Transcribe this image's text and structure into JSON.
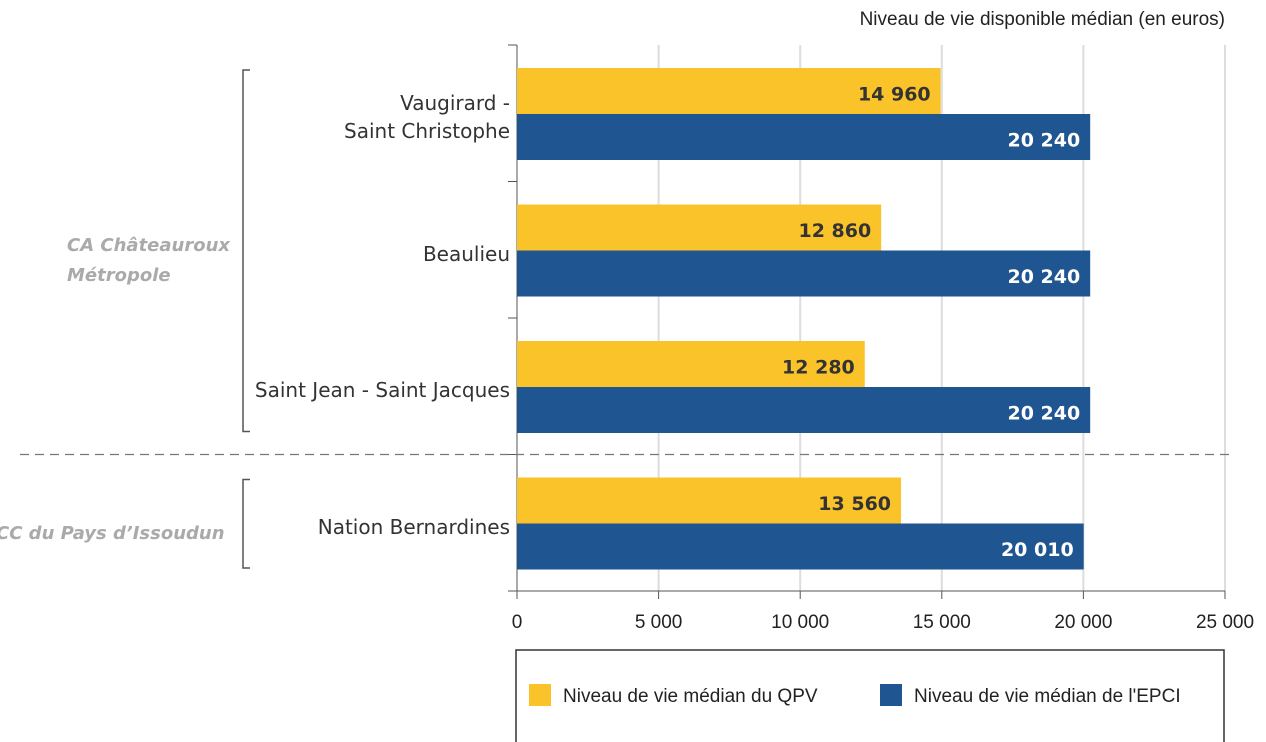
{
  "chart_data": {
    "type": "bar",
    "orientation": "horizontal",
    "x_label": "Niveau de vie disponible médian (en euros)",
    "groups": [
      {
        "name": "CA Châteauroux\nMétropole",
        "categories": [
          "Vaugirard -\nSaint Christophe",
          "Beaulieu",
          "Saint Jean - Saint Jacques"
        ]
      },
      {
        "name": "CC du Pays d’Issoudun",
        "categories": [
          "Nation Bernardines"
        ]
      }
    ],
    "series": [
      {
        "name": "Niveau de vie médian du QPV",
        "color": "#fbc32a",
        "values": [
          14960,
          12860,
          12280,
          13560
        ],
        "value_labels": [
          "14 960",
          "12 860",
          "12 280",
          "13 560"
        ]
      },
      {
        "name": "Niveau de vie médian de l'EPCI",
        "color": "#1f5591",
        "values": [
          20240,
          20240,
          20240,
          20010
        ],
        "value_labels": [
          "20 240",
          "20 240",
          "20 240",
          "20 010"
        ]
      }
    ],
    "xlim": [
      0,
      25000
    ],
    "xticks": [
      0,
      {
        "value": 5000,
        "label": "5 000"
      },
      {
        "value": 10000,
        "label": "10 000"
      },
      {
        "value": 15000,
        "label": "15 000"
      },
      {
        "value": 20000,
        "label": "20 000"
      },
      {
        "value": 25000,
        "label": "25 000"
      }
    ],
    "grid": true,
    "legend": "bottom"
  }
}
